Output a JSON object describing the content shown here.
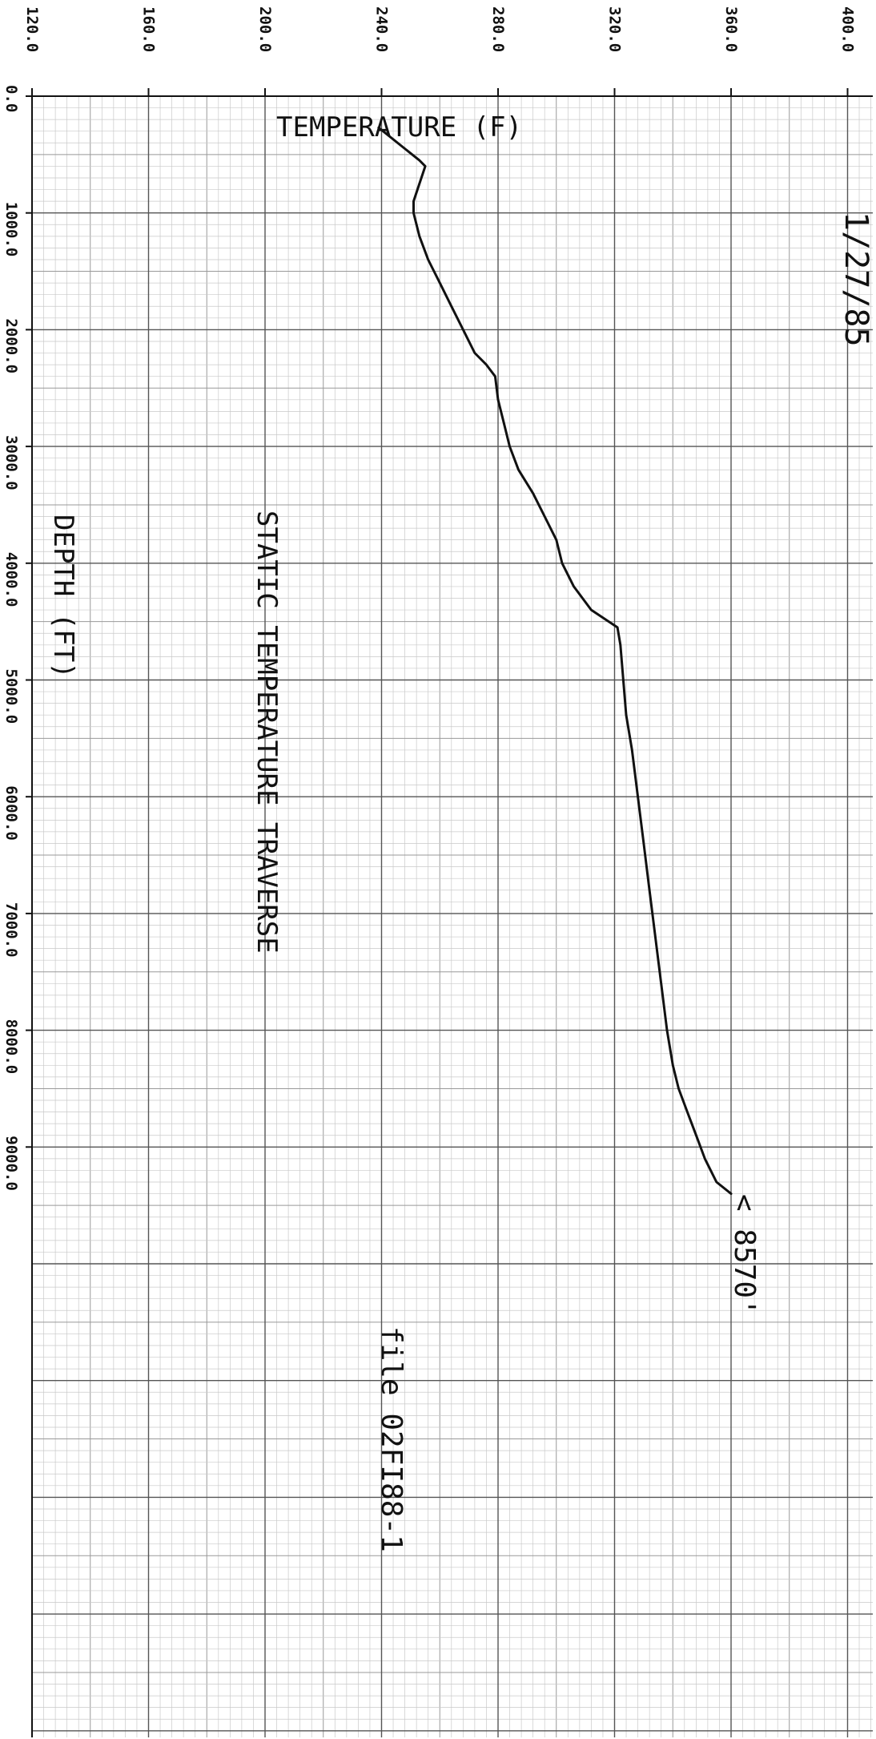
{
  "chart_data": {
    "type": "line",
    "title": "STATIC TEMPERATURE TRAVERSE",
    "date": "1/27/85",
    "xlabel": "TEMPERATURE (F)",
    "ylabel": "DEPTH (FT)",
    "file_label": "file 02FI88-1",
    "annotation": "< 8570'",
    "temperature_ticks": [
      "120.0",
      "160.0",
      "200.0",
      "240.0",
      "280.0",
      "320.0",
      "360.0",
      "400.0"
    ],
    "depth_ticks": [
      "0.0",
      "1000.0",
      "2000.0",
      "3000.0",
      "4000.0",
      "5000.0",
      "6000.0",
      "7000.0",
      "8000.0",
      "9000.0"
    ],
    "xlim": [
      120,
      400
    ],
    "ylim": [
      0,
      14000
    ],
    "grid": true,
    "line_color": "#111111",
    "series": [
      {
        "x": [
          239,
          253,
          255,
          251,
          251,
          253,
          256,
          260,
          264,
          268,
          272,
          276,
          279,
          280,
          282,
          284,
          287,
          292,
          296,
          300,
          302,
          306,
          312,
          318,
          321,
          322,
          323,
          324,
          326,
          328,
          330,
          332,
          334,
          336,
          338,
          340,
          342,
          345,
          348,
          351,
          355,
          360
        ],
        "y": [
          270,
          550,
          600,
          900,
          1000,
          1200,
          1400,
          1600,
          1800,
          2000,
          2200,
          2300,
          2400,
          2600,
          2800,
          3000,
          3200,
          3400,
          3600,
          3800,
          4000,
          4200,
          4400,
          4500,
          4550,
          4700,
          5000,
          5300,
          5600,
          6000,
          6400,
          6800,
          7200,
          7600,
          8000,
          8300,
          8500,
          8700,
          8900,
          9100,
          9300,
          9400
        ]
      }
    ]
  }
}
